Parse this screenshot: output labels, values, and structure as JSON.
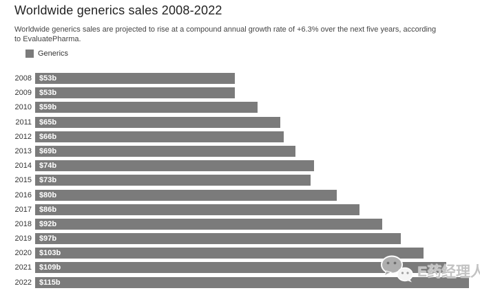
{
  "header": {
    "title": "Worldwide generics sales 2008-2022",
    "subtitle": "Worldwide generics sales are projected to rise at a compound annual growth rate of +6.3% over the next five years, according to EvaluatePharma."
  },
  "legend": {
    "label": "Generics",
    "swatch_color": "#7b7b7b"
  },
  "chart_data": {
    "type": "bar",
    "orientation": "horizontal",
    "title": "Worldwide generics sales 2008-2022",
    "subtitle": "Worldwide generics sales are projected to rise at a compound annual growth rate of +6.3% over the next five years, according to EvaluatePharma.",
    "legend_entries": [
      "Generics"
    ],
    "legend_position": "top-left",
    "categories": [
      "2008",
      "2009",
      "2010",
      "2011",
      "2012",
      "2013",
      "2014",
      "2015",
      "2016",
      "2017",
      "2018",
      "2019",
      "2020",
      "2021",
      "2022"
    ],
    "values": [
      53,
      53,
      59,
      65,
      66,
      69,
      74,
      73,
      80,
      86,
      92,
      97,
      103,
      109,
      115
    ],
    "value_labels": [
      "$53b",
      "$53b",
      "$59b",
      "$65b",
      "$66b",
      "$69b",
      "$74b",
      "$73b",
      "$80b",
      "$86b",
      "$92b",
      "$97b",
      "$103b",
      "$109b",
      "$115b"
    ],
    "xlabel": "",
    "ylabel": "",
    "xlim": [
      0,
      118
    ],
    "grid": false,
    "bar_color": "#7b7b7b",
    "value_label_color": "#ffffff"
  },
  "watermark": {
    "text": "E药经理人",
    "icon": "wechat-icon"
  }
}
